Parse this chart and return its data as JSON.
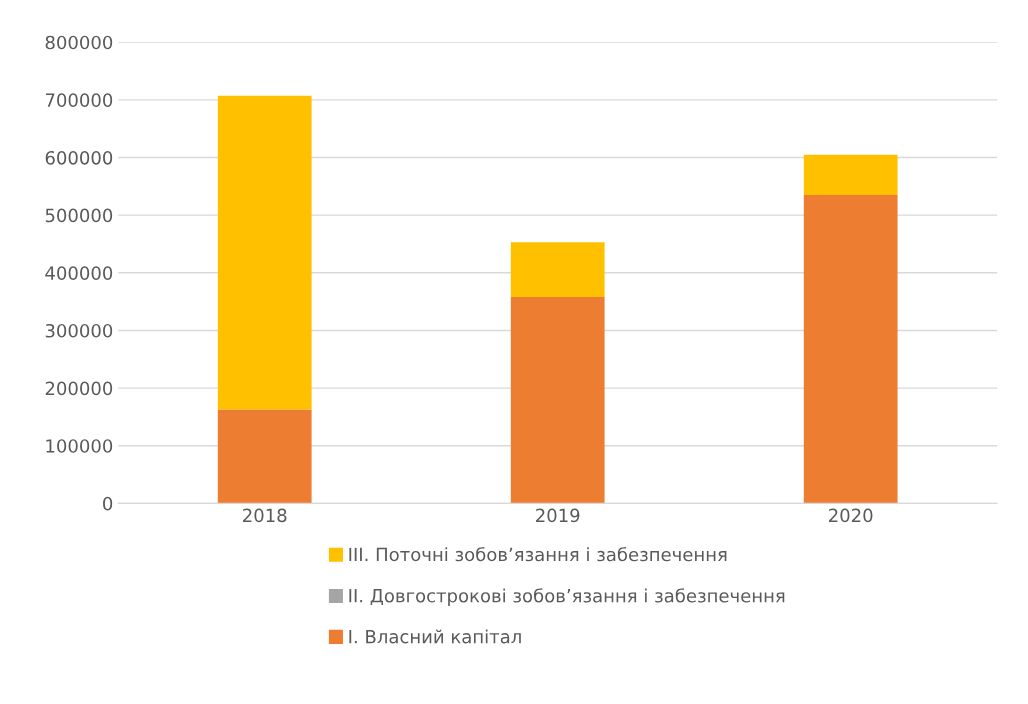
{
  "chart_data": {
    "type": "bar",
    "stacked": true,
    "categories": [
      "2018",
      "2019",
      "2020"
    ],
    "series": [
      {
        "name": "I. Власний капітал",
        "color": "#ed7d31",
        "values": [
          163000,
          358000,
          535000
        ]
      },
      {
        "name": "II. Довгострокові зобов’язання і забезпечення",
        "color": "#a5a5a5",
        "values": [
          0,
          0,
          0
        ]
      },
      {
        "name": "III. Поточні зобов’язання і забезпечення",
        "color": "#ffc000",
        "values": [
          544000,
          95000,
          70000
        ]
      }
    ],
    "ylim": [
      0,
      800000
    ],
    "yticks": [
      0,
      100000,
      200000,
      300000,
      400000,
      500000,
      600000,
      700000,
      800000
    ],
    "grid": "y",
    "legend": "bottom"
  }
}
